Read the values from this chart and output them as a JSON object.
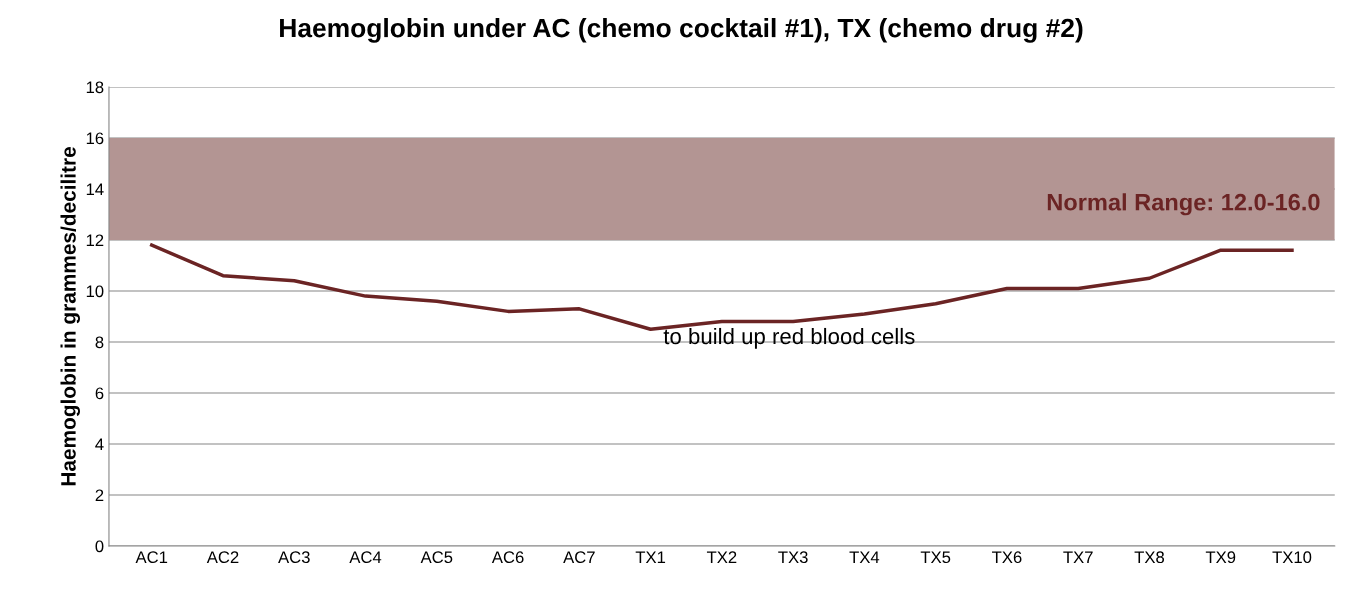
{
  "chart_data": {
    "type": "line",
    "title": "Haemoglobin under AC (chemo cocktail #1), TX (chemo drug #2)",
    "ylabel": "Haemoglobin in grammes/decilitre",
    "categories": [
      "AC1",
      "AC2",
      "AC3",
      "AC4",
      "AC5",
      "AC6",
      "AC7",
      "TX1",
      "TX2",
      "TX3",
      "TX4",
      "TX5",
      "TX6",
      "TX7",
      "TX8",
      "TX9",
      "TX10"
    ],
    "series": [
      {
        "color": "#6b2424",
        "values": [
          11.8,
          10.6,
          10.4,
          9.8,
          9.6,
          9.2,
          9.3,
          8.5,
          8.8,
          8.8,
          9.1,
          9.5,
          10.1,
          10.1,
          10.5,
          11.6,
          11.6
        ]
      }
    ],
    "ylim": [
      0,
      18
    ],
    "yticks": [
      0,
      2,
      4,
      6,
      8,
      10,
      12,
      14,
      16,
      18
    ],
    "grid": "y",
    "marker": "none",
    "line_style": "solid",
    "bands": [
      {
        "axis": "y",
        "from": 12,
        "to": 16,
        "label": "Normal Range: 12.0-16.0",
        "color": "#b39593"
      }
    ],
    "annotations": [
      "to build up red blood cells"
    ]
  }
}
